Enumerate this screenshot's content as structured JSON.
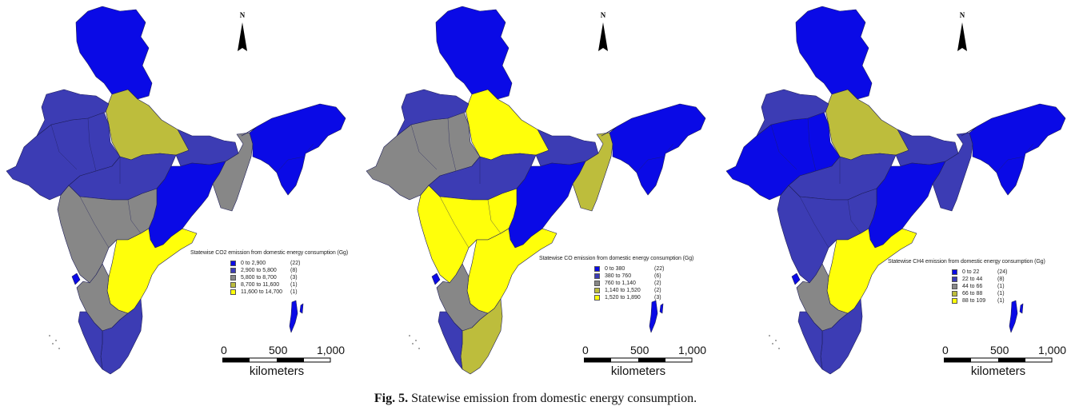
{
  "figure": {
    "caption_label": "Fig. 5.",
    "caption_text": "Statewise emission from domestic energy consumption."
  },
  "colors": {
    "class1": "#0a0ae6",
    "class2": "#3c3cb4",
    "class3": "#878787",
    "class4": "#bdbd3c",
    "class5": "#ffff0a",
    "border": "#1e1e5a"
  },
  "maps": [
    {
      "id": "co2",
      "north_label": "N",
      "legend": {
        "title": "Statewise CO2 emission from domestic energy consumption (Gg)",
        "items": [
          {
            "range": "0 to   2,900",
            "count": "(22)"
          },
          {
            "range": "2,900 to   5,800",
            "count": "(8)"
          },
          {
            "range": "5,800 to   8,700",
            "count": "(3)"
          },
          {
            "range": "8,700 to 11,600",
            "count": "(1)"
          },
          {
            "range": "11,600 to 14,700",
            "count": "(1)"
          }
        ]
      },
      "scale": {
        "ticks": [
          "0",
          "500",
          "1,000"
        ],
        "unit": "kilometers"
      },
      "state_classes": {
        "north": 1,
        "central": 2,
        "west": 2,
        "up": 4,
        "bihar": 2,
        "east": 1,
        "wb": 3,
        "northeast": 1,
        "maharashtra": 3,
        "karnataka": 3,
        "andhra": 5,
        "tamilnadu": 2,
        "kerala": 2,
        "goa": 1,
        "islands": 1
      }
    },
    {
      "id": "co",
      "north_label": "N",
      "legend": {
        "title": "Statewise CO emission from domestic energy consumption (Gg)",
        "items": [
          {
            "range": "0 to    380",
            "count": "(22)"
          },
          {
            "range": "380 to    760",
            "count": "(6)"
          },
          {
            "range": "760 to 1,140",
            "count": "(2)"
          },
          {
            "range": "1,140 to 1,520",
            "count": "(2)"
          },
          {
            "range": "1,520 to 1,890",
            "count": "(3)"
          }
        ]
      },
      "scale": {
        "ticks": [
          "0",
          "500",
          "1,000"
        ],
        "unit": "kilometers"
      },
      "state_classes": {
        "north": 1,
        "central": 2,
        "west": 3,
        "up": 5,
        "bihar": 2,
        "east": 1,
        "wb": 4,
        "northeast": 1,
        "maharashtra": 5,
        "karnataka": 3,
        "andhra": 5,
        "tamilnadu": 4,
        "kerala": 2,
        "goa": 1,
        "islands": 1
      }
    },
    {
      "id": "ch4",
      "north_label": "N",
      "legend": {
        "title": "Statewise CH4 emission from domestic energy consumption (Gg)",
        "items": [
          {
            "range": "0 to   22",
            "count": "(24)"
          },
          {
            "range": "22 to   44",
            "count": "(8)"
          },
          {
            "range": "44 to   66",
            "count": "(1)"
          },
          {
            "range": "66 to   88",
            "count": "(1)"
          },
          {
            "range": "88 to 109",
            "count": "(1)"
          }
        ]
      },
      "scale": {
        "ticks": [
          "0",
          "500",
          "1,000"
        ],
        "unit": "kilometers"
      },
      "state_classes": {
        "north": 1,
        "central": 2,
        "west": 1,
        "up": 4,
        "bihar": 2,
        "east": 1,
        "wb": 2,
        "northeast": 1,
        "maharashtra": 2,
        "karnataka": 3,
        "andhra": 5,
        "tamilnadu": 2,
        "kerala": 2,
        "goa": 1,
        "islands": 1
      }
    }
  ]
}
